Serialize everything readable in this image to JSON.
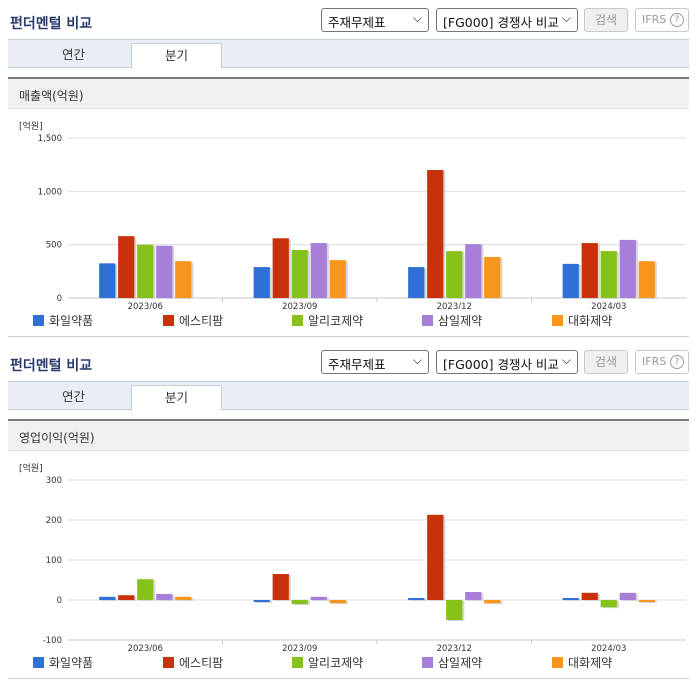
{
  "panels": [
    {
      "title": "펀더멘털 비교",
      "select_statement": "주재무제표",
      "select_compare": "[FG000] 경쟁사 비교",
      "search_label": "검색",
      "ifrs_label": "IFRS",
      "help_glyph": "?",
      "tabs": [
        {
          "label": "연간",
          "active": false
        },
        {
          "label": "분기",
          "active": true
        }
      ],
      "chart_title": "매출액(억원)",
      "unit": "[억원]"
    },
    {
      "title": "펀더멘털 비교",
      "select_statement": "주재무제표",
      "select_compare": "[FG000] 경쟁사 비교",
      "search_label": "검색",
      "ifrs_label": "IFRS",
      "help_glyph": "?",
      "tabs": [
        {
          "label": "연간",
          "active": false
        },
        {
          "label": "분기",
          "active": true
        }
      ],
      "chart_title": "영업이익(억원)",
      "unit": "[억원]"
    }
  ],
  "colors": {
    "화일약품": "#2f6fd6",
    "에스티팜": "#c9310c",
    "알리코제약": "#87c21b",
    "삼일제약": "#a77fd8",
    "대화제약": "#f7961e"
  },
  "chart_data": [
    {
      "type": "bar",
      "title": "매출액(억원)",
      "ylabel": "[억원]",
      "ylim": [
        0,
        1500
      ],
      "yticks": [
        0,
        500,
        1000,
        1500
      ],
      "ytick_labels": [
        "0",
        "500",
        "1,000",
        "1,500"
      ],
      "categories": [
        "2023/06",
        "2023/09",
        "2023/12",
        "2024/03"
      ],
      "series": [
        {
          "name": "화일약품",
          "values": [
            325,
            290,
            290,
            320
          ]
        },
        {
          "name": "에스티팜",
          "values": [
            580,
            560,
            1200,
            515
          ]
        },
        {
          "name": "알리코제약",
          "values": [
            500,
            450,
            440,
            440
          ]
        },
        {
          "name": "삼일제약",
          "values": [
            490,
            515,
            505,
            545
          ]
        },
        {
          "name": "대화제약",
          "values": [
            345,
            355,
            385,
            345
          ]
        }
      ],
      "legend": "bottom",
      "grid": true
    },
    {
      "type": "bar",
      "title": "영업이익(억원)",
      "ylabel": "[억원]",
      "ylim": [
        -100,
        300
      ],
      "yticks": [
        -100,
        0,
        100,
        200,
        300
      ],
      "ytick_labels": [
        "-100",
        "0",
        "100",
        "200",
        "300"
      ],
      "categories": [
        "2023/06",
        "2023/09",
        "2023/12",
        "2024/03"
      ],
      "series": [
        {
          "name": "화일약품",
          "values": [
            8,
            -5,
            5,
            5
          ]
        },
        {
          "name": "에스티팜",
          "values": [
            12,
            65,
            213,
            18
          ]
        },
        {
          "name": "알리코제약",
          "values": [
            52,
            -10,
            -50,
            -18
          ]
        },
        {
          "name": "삼일제약",
          "values": [
            15,
            8,
            20,
            18
          ]
        },
        {
          "name": "대화제약",
          "values": [
            8,
            -8,
            -8,
            -5
          ]
        }
      ],
      "legend": "bottom",
      "grid": true
    }
  ]
}
